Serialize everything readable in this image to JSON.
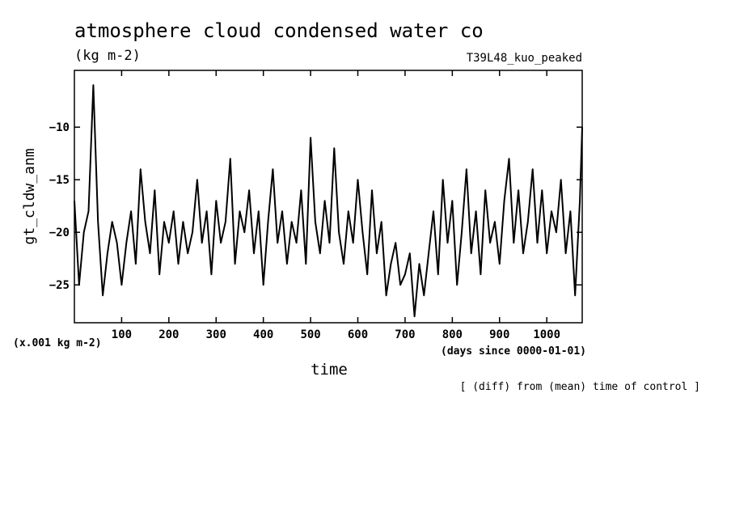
{
  "chart_data": {
    "type": "line",
    "title": "atmosphere cloud condensed water co",
    "subtitle": "(kg m-2)",
    "run_label": "T39L48_kuo_peaked",
    "ylabel": "gt_cldw_anm",
    "xlabel": "time",
    "y_scale_note": "(x.001 kg m-2)",
    "x_unit_note": "(days since 0000-01-01)",
    "footnote": "[ (diff) from (mean) time of control ]",
    "xlim": [
      0,
      1075
    ],
    "ylim": [
      -28.6,
      -4.6
    ],
    "x_ticks": [
      100,
      200,
      300,
      400,
      500,
      600,
      700,
      800,
      900,
      1000
    ],
    "y_ticks": [
      -10,
      -15,
      -20,
      -25
    ],
    "grid": false,
    "series": [
      {
        "name": "gt_cldw_anm",
        "x": [
          0,
          10,
          20,
          30,
          40,
          50,
          60,
          70,
          80,
          90,
          100,
          110,
          120,
          130,
          140,
          150,
          160,
          170,
          180,
          190,
          200,
          210,
          220,
          230,
          240,
          250,
          260,
          270,
          280,
          290,
          300,
          310,
          320,
          330,
          340,
          350,
          360,
          370,
          380,
          390,
          400,
          410,
          420,
          430,
          440,
          450,
          460,
          470,
          480,
          490,
          500,
          510,
          520,
          530,
          540,
          550,
          560,
          570,
          580,
          590,
          600,
          610,
          620,
          630,
          640,
          650,
          660,
          670,
          680,
          690,
          700,
          710,
          720,
          730,
          740,
          750,
          760,
          770,
          780,
          790,
          800,
          810,
          820,
          830,
          840,
          850,
          860,
          870,
          880,
          890,
          900,
          910,
          920,
          930,
          940,
          950,
          960,
          970,
          980,
          990,
          1000,
          1010,
          1020,
          1030,
          1040,
          1050,
          1060,
          1070,
          1075
        ],
        "values": [
          -17,
          -25,
          -20,
          -18,
          -6,
          -19,
          -26,
          -22,
          -19,
          -21,
          -25,
          -21,
          -18,
          -23,
          -14,
          -19,
          -22,
          -16,
          -24,
          -19,
          -21,
          -18,
          -23,
          -19,
          -22,
          -20,
          -15,
          -21,
          -18,
          -24,
          -17,
          -21,
          -19,
          -13,
          -23,
          -18,
          -20,
          -16,
          -22,
          -18,
          -25,
          -19,
          -14,
          -21,
          -18,
          -23,
          -19,
          -21,
          -16,
          -23,
          -11,
          -19,
          -22,
          -17,
          -21,
          -12,
          -20,
          -23,
          -18,
          -21,
          -15,
          -20,
          -24,
          -16,
          -22,
          -19,
          -26,
          -23,
          -21,
          -25,
          -24,
          -22,
          -28,
          -23,
          -26,
          -22,
          -18,
          -24,
          -15,
          -21,
          -17,
          -25,
          -20,
          -14,
          -22,
          -18,
          -24,
          -16,
          -21,
          -19,
          -23,
          -17,
          -13,
          -21,
          -16,
          -22,
          -19,
          -14,
          -21,
          -16,
          -22,
          -18,
          -20,
          -15,
          -22,
          -18,
          -26,
          -17,
          -10
        ]
      }
    ]
  }
}
